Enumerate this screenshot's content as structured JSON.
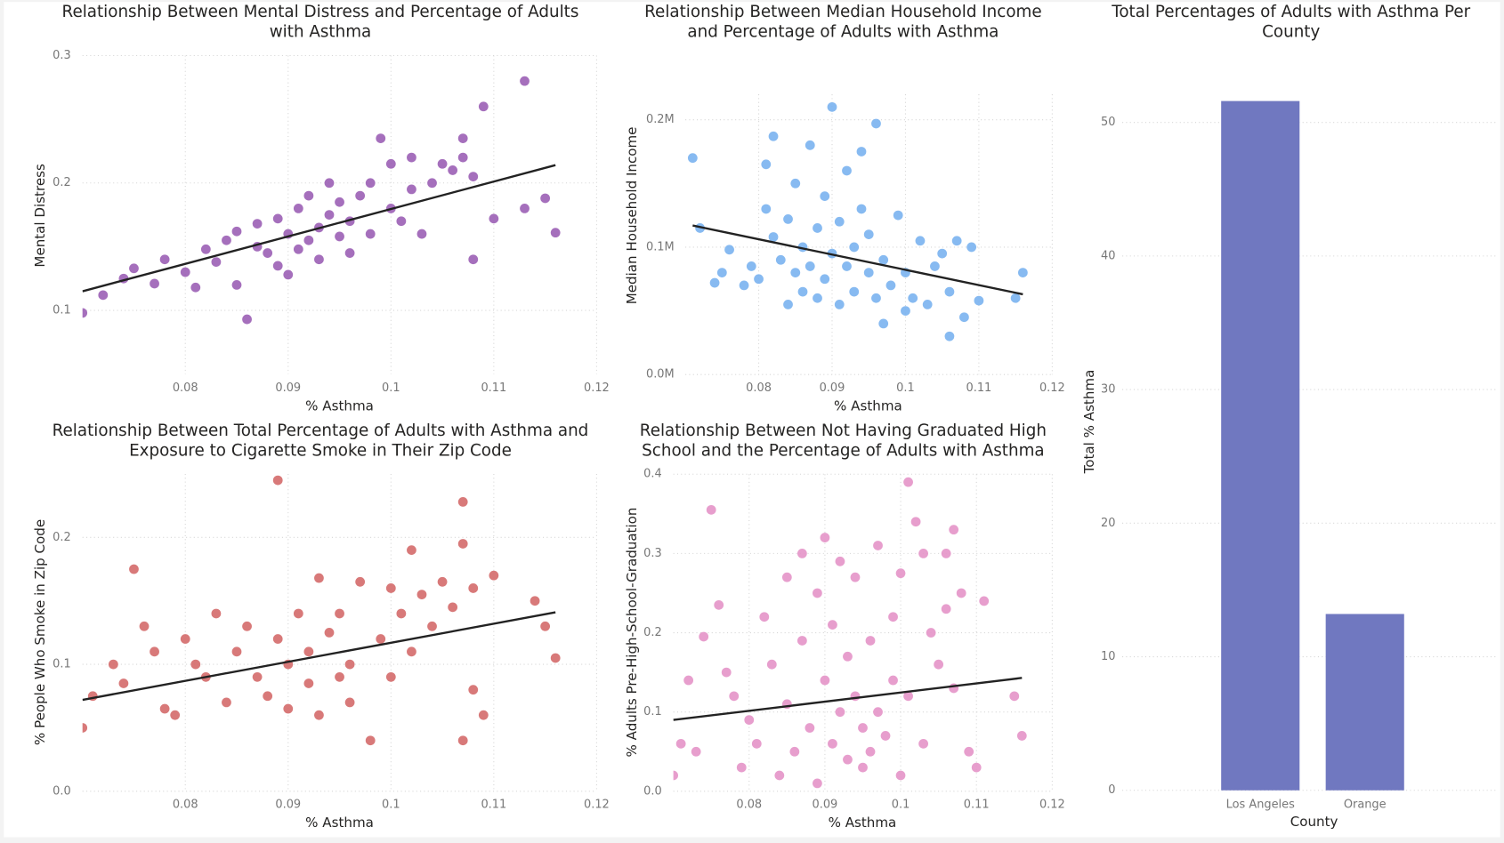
{
  "chart_data": [
    {
      "type": "scatter",
      "title": [
        "Relationship Between Mental Distress and Percentage of Adults",
        "with Asthma"
      ],
      "x_label": "% Asthma",
      "y_label": "Mental Distress",
      "color": "#9b5fb5",
      "xlim": [
        0.07,
        0.12
      ],
      "xticks": [
        0.08,
        0.09,
        0.1,
        0.11,
        0.12
      ],
      "ylim": [
        0.05,
        0.3
      ],
      "yticks": [
        0.1,
        0.2,
        0.3
      ],
      "grid": true,
      "trend": {
        "x": [
          0.07,
          0.116
        ],
        "y": [
          0.115,
          0.214
        ]
      },
      "x": [
        0.07,
        0.072,
        0.074,
        0.075,
        0.077,
        0.078,
        0.08,
        0.081,
        0.082,
        0.083,
        0.084,
        0.085,
        0.085,
        0.086,
        0.087,
        0.087,
        0.088,
        0.089,
        0.089,
        0.09,
        0.09,
        0.091,
        0.091,
        0.092,
        0.092,
        0.093,
        0.093,
        0.094,
        0.094,
        0.095,
        0.095,
        0.096,
        0.096,
        0.097,
        0.098,
        0.098,
        0.099,
        0.1,
        0.1,
        0.101,
        0.102,
        0.102,
        0.103,
        0.104,
        0.105,
        0.106,
        0.107,
        0.107,
        0.108,
        0.108,
        0.109,
        0.11,
        0.113,
        0.113,
        0.115,
        0.116
      ],
      "y": [
        0.098,
        0.112,
        0.125,
        0.133,
        0.121,
        0.14,
        0.13,
        0.118,
        0.148,
        0.138,
        0.155,
        0.162,
        0.12,
        0.093,
        0.15,
        0.168,
        0.145,
        0.172,
        0.135,
        0.16,
        0.128,
        0.18,
        0.148,
        0.155,
        0.19,
        0.165,
        0.14,
        0.175,
        0.2,
        0.158,
        0.185,
        0.17,
        0.145,
        0.19,
        0.16,
        0.2,
        0.235,
        0.18,
        0.215,
        0.17,
        0.22,
        0.195,
        0.16,
        0.2,
        0.215,
        0.21,
        0.235,
        0.22,
        0.14,
        0.205,
        0.26,
        0.172,
        0.28,
        0.18,
        0.188,
        0.161
      ]
    },
    {
      "type": "scatter",
      "title": [
        "Relationship Between Median Household Income",
        "and Percentage of Adults with Asthma"
      ],
      "x_label": "% Asthma",
      "y_label": "Median Household Income",
      "color": "#7ab3f0",
      "xlim": [
        0.07,
        0.12
      ],
      "xticks": [
        0.08,
        0.09,
        0.1,
        0.11,
        0.12
      ],
      "ylim": [
        0,
        220000
      ],
      "yticks": [
        {
          "value": 0,
          "label": "0.0M"
        },
        {
          "value": 100000,
          "label": "0.1M"
        },
        {
          "value": 200000,
          "label": "0.2M"
        }
      ],
      "grid": true,
      "trend": {
        "x": [
          0.071,
          0.116
        ],
        "y": [
          117000,
          63000
        ]
      },
      "x": [
        0.071,
        0.072,
        0.074,
        0.075,
        0.076,
        0.078,
        0.079,
        0.08,
        0.081,
        0.081,
        0.082,
        0.082,
        0.083,
        0.084,
        0.084,
        0.085,
        0.085,
        0.086,
        0.086,
        0.087,
        0.087,
        0.088,
        0.088,
        0.089,
        0.089,
        0.09,
        0.09,
        0.091,
        0.091,
        0.092,
        0.092,
        0.093,
        0.093,
        0.094,
        0.094,
        0.095,
        0.095,
        0.096,
        0.096,
        0.097,
        0.097,
        0.098,
        0.099,
        0.1,
        0.1,
        0.101,
        0.102,
        0.103,
        0.104,
        0.105,
        0.106,
        0.106,
        0.107,
        0.108,
        0.109,
        0.11,
        0.115,
        0.116
      ],
      "y": [
        170000,
        115000,
        72000,
        80000,
        98000,
        70000,
        85000,
        75000,
        130000,
        165000,
        108000,
        187000,
        90000,
        55000,
        122000,
        80000,
        150000,
        65000,
        100000,
        85000,
        180000,
        60000,
        115000,
        140000,
        75000,
        95000,
        210000,
        120000,
        55000,
        85000,
        160000,
        100000,
        65000,
        130000,
        175000,
        80000,
        110000,
        60000,
        197000,
        90000,
        40000,
        70000,
        125000,
        50000,
        80000,
        60000,
        105000,
        55000,
        85000,
        95000,
        30000,
        65000,
        105000,
        45000,
        100000,
        58000,
        60000,
        80000
      ]
    },
    {
      "type": "scatter",
      "title": [
        "Relationship Between Total Percentage of Adults with Asthma and",
        "Exposure to Cigarette Smoke in Their Zip Code"
      ],
      "x_label": "% Asthma",
      "y_label": "% People Who Smoke in Zip Code",
      "color": "#d46a6a",
      "xlim": [
        0.07,
        0.12
      ],
      "xticks": [
        0.08,
        0.09,
        0.1,
        0.11,
        0.12
      ],
      "ylim": [
        0,
        0.25
      ],
      "yticks": [
        {
          "value": 0,
          "label": "0.0"
        },
        0.1,
        0.2
      ],
      "grid": true,
      "trend": {
        "x": [
          0.07,
          0.116
        ],
        "y": [
          0.072,
          0.141
        ]
      },
      "x": [
        0.07,
        0.071,
        0.073,
        0.074,
        0.075,
        0.076,
        0.077,
        0.078,
        0.079,
        0.08,
        0.081,
        0.082,
        0.083,
        0.084,
        0.085,
        0.086,
        0.087,
        0.088,
        0.089,
        0.089,
        0.09,
        0.09,
        0.091,
        0.092,
        0.092,
        0.093,
        0.093,
        0.094,
        0.095,
        0.095,
        0.096,
        0.096,
        0.097,
        0.098,
        0.099,
        0.1,
        0.1,
        0.101,
        0.102,
        0.102,
        0.103,
        0.104,
        0.105,
        0.106,
        0.107,
        0.107,
        0.107,
        0.108,
        0.108,
        0.109,
        0.11,
        0.114,
        0.115,
        0.116
      ],
      "y": [
        0.05,
        0.075,
        0.1,
        0.085,
        0.175,
        0.13,
        0.11,
        0.065,
        0.06,
        0.12,
        0.1,
        0.09,
        0.14,
        0.07,
        0.11,
        0.13,
        0.09,
        0.075,
        0.245,
        0.12,
        0.1,
        0.065,
        0.14,
        0.085,
        0.11,
        0.168,
        0.06,
        0.125,
        0.09,
        0.14,
        0.1,
        0.07,
        0.165,
        0.04,
        0.12,
        0.16,
        0.09,
        0.14,
        0.11,
        0.19,
        0.155,
        0.13,
        0.165,
        0.145,
        0.228,
        0.04,
        0.195,
        0.16,
        0.08,
        0.06,
        0.17,
        0.15,
        0.13,
        0.105
      ]
    },
    {
      "type": "scatter",
      "title": [
        "Relationship Between Not Having Graduated High",
        "School and the Percentage of Adults with Asthma"
      ],
      "x_label": "% Asthma",
      "y_label": "% Adults Pre-High-School-Graduation",
      "color": "#e493c8",
      "xlim": [
        0.07,
        0.12
      ],
      "xticks": [
        0.08,
        0.09,
        0.1,
        0.11,
        0.12
      ],
      "ylim": [
        0,
        0.4
      ],
      "yticks": [
        {
          "value": 0,
          "label": "0.0"
        },
        0.1,
        0.2,
        0.3,
        0.4
      ],
      "grid": true,
      "trend": {
        "x": [
          0.07,
          0.116
        ],
        "y": [
          0.09,
          0.143
        ]
      },
      "x": [
        0.07,
        0.071,
        0.072,
        0.073,
        0.074,
        0.075,
        0.076,
        0.077,
        0.078,
        0.079,
        0.08,
        0.081,
        0.082,
        0.083,
        0.084,
        0.085,
        0.085,
        0.086,
        0.087,
        0.087,
        0.088,
        0.089,
        0.089,
        0.09,
        0.09,
        0.091,
        0.091,
        0.092,
        0.092,
        0.093,
        0.093,
        0.094,
        0.094,
        0.095,
        0.095,
        0.096,
        0.096,
        0.097,
        0.097,
        0.098,
        0.099,
        0.099,
        0.1,
        0.1,
        0.101,
        0.101,
        0.102,
        0.103,
        0.103,
        0.104,
        0.105,
        0.106,
        0.106,
        0.107,
        0.107,
        0.108,
        0.109,
        0.11,
        0.111,
        0.115,
        0.116
      ],
      "y": [
        0.02,
        0.06,
        0.14,
        0.05,
        0.195,
        0.355,
        0.235,
        0.15,
        0.12,
        0.03,
        0.09,
        0.06,
        0.22,
        0.16,
        0.02,
        0.27,
        0.11,
        0.05,
        0.3,
        0.19,
        0.08,
        0.25,
        0.01,
        0.14,
        0.32,
        0.06,
        0.21,
        0.1,
        0.29,
        0.04,
        0.17,
        0.12,
        0.27,
        0.03,
        0.08,
        0.19,
        0.05,
        0.31,
        0.1,
        0.07,
        0.22,
        0.14,
        0.275,
        0.02,
        0.39,
        0.12,
        0.34,
        0.3,
        0.06,
        0.2,
        0.16,
        0.3,
        0.23,
        0.33,
        0.13,
        0.25,
        0.05,
        0.03,
        0.24,
        0.12,
        0.07
      ]
    },
    {
      "type": "bar",
      "title": [
        "Total Percentages of Adults with Asthma Per",
        "County"
      ],
      "x_label": "County",
      "y_label": "Total % Asthma",
      "color": "#7078c0",
      "categories": [
        "Los Angeles",
        "Orange"
      ],
      "values": [
        51.6,
        13.2
      ],
      "ylim": [
        0,
        54
      ],
      "yticks": [
        0,
        10,
        20,
        30,
        40,
        50
      ],
      "grid": true
    }
  ]
}
